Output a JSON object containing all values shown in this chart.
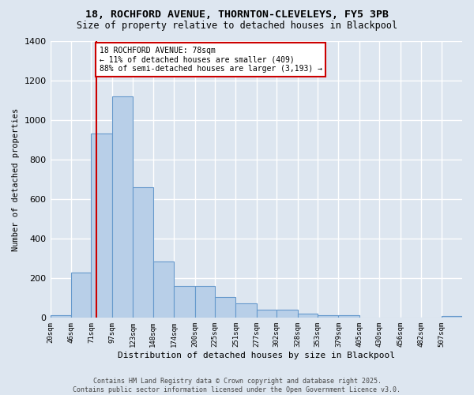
{
  "title_line1": "18, ROCHFORD AVENUE, THORNTON-CLEVELEYS, FY5 3PB",
  "title_line2": "Size of property relative to detached houses in Blackpool",
  "xlabel": "Distribution of detached houses by size in Blackpool",
  "ylabel": "Number of detached properties",
  "bar_color": "#b8cfe8",
  "bar_edge_color": "#6699cc",
  "background_color": "#dde6f0",
  "grid_color": "#ffffff",
  "property_line_x": 78,
  "annotation_text": "18 ROCHFORD AVENUE: 78sqm\n← 11% of detached houses are smaller (409)\n88% of semi-detached houses are larger (3,193) →",
  "annotation_box_color": "#ffffff",
  "annotation_border_color": "#cc0000",
  "vline_color": "#cc0000",
  "bins": [
    20,
    46,
    71,
    97,
    123,
    148,
    174,
    200,
    225,
    251,
    277,
    302,
    328,
    353,
    379,
    405,
    430,
    456,
    482,
    507,
    533
  ],
  "bar_heights": [
    15,
    228,
    930,
    1120,
    658,
    285,
    160,
    160,
    107,
    75,
    42,
    42,
    20,
    15,
    15,
    0,
    0,
    0,
    0,
    8
  ],
  "ylim": [
    0,
    1400
  ],
  "yticks": [
    0,
    200,
    400,
    600,
    800,
    1000,
    1200,
    1400
  ],
  "footer_line1": "Contains HM Land Registry data © Crown copyright and database right 2025.",
  "footer_line2": "Contains public sector information licensed under the Open Government Licence v3.0."
}
